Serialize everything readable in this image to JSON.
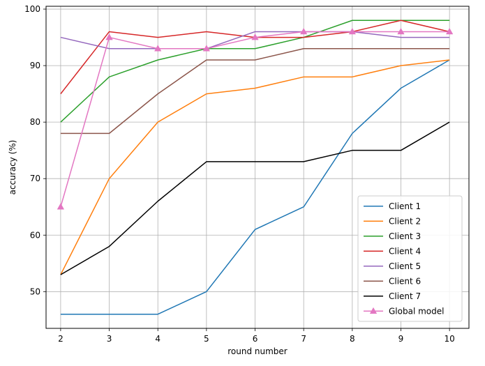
{
  "chart_data": {
    "type": "line",
    "title": "",
    "xlabel": "round number",
    "ylabel": "accuracy (%)",
    "x": [
      2,
      3,
      4,
      5,
      6,
      7,
      8,
      9,
      10
    ],
    "xticks": [
      "2",
      "3",
      "4",
      "5",
      "6",
      "7",
      "8",
      "9",
      "10"
    ],
    "yticks": [
      "50",
      "60",
      "70",
      "80",
      "90",
      "100"
    ],
    "xlim": [
      1.7,
      10.4
    ],
    "ylim": [
      43.5,
      100.5
    ],
    "grid": true,
    "legend_position": "bottom-right",
    "series": [
      {
        "name": "Client 1",
        "color": "#1f77b4",
        "marker": "none",
        "values": [
          46,
          46,
          46,
          50,
          61,
          65,
          78,
          86,
          91
        ]
      },
      {
        "name": "Client 2",
        "color": "#ff7f0e",
        "marker": "none",
        "values": [
          53,
          70,
          80,
          85,
          86,
          88,
          88,
          90,
          91
        ]
      },
      {
        "name": "Client 3",
        "color": "#2ca02c",
        "marker": "none",
        "values": [
          80,
          88,
          91,
          93,
          93,
          95,
          98,
          98,
          98
        ]
      },
      {
        "name": "Client 4",
        "color": "#d62728",
        "marker": "none",
        "values": [
          85,
          96,
          95,
          96,
          95,
          95,
          96,
          98,
          96
        ]
      },
      {
        "name": "Client 5",
        "color": "#9467bd",
        "marker": "none",
        "values": [
          95,
          93,
          93,
          93,
          96,
          96,
          96,
          95,
          95
        ]
      },
      {
        "name": "Client 6",
        "color": "#8c564b",
        "marker": "none",
        "values": [
          78,
          78,
          85,
          91,
          91,
          93,
          93,
          93,
          93
        ]
      },
      {
        "name": "Client 7",
        "color": "#000000",
        "marker": "none",
        "values": [
          53,
          58,
          66,
          73,
          73,
          73,
          75,
          75,
          80
        ]
      },
      {
        "name": "Global model",
        "color": "#e377c2",
        "marker": "triangle",
        "values": [
          65,
          95,
          93,
          93,
          95,
          96,
          96,
          96,
          96
        ]
      }
    ]
  }
}
